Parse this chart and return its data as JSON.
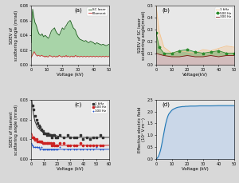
{
  "panel_a": {
    "title": "(a)",
    "xlabel": "Voltage (kV)",
    "ylabel": "SDEV of\nscattering angle (mrad)",
    "xlim": [
      0,
      50
    ],
    "ylim": [
      0,
      0.08
    ],
    "yticks": [
      0.0,
      0.02,
      0.04,
      0.06,
      0.08
    ],
    "xticks": [
      0,
      10,
      20,
      30,
      40,
      50
    ],
    "sc_laser_x": [
      0,
      0.5,
      1,
      1.5,
      2,
      2.5,
      3,
      3.5,
      4,
      4.5,
      5,
      5.5,
      6,
      6.5,
      7,
      7.5,
      8,
      8.5,
      9,
      9.5,
      10,
      10.5,
      11,
      11.5,
      12,
      12.5,
      13,
      13.5,
      14,
      14.5,
      15,
      15.5,
      16,
      16.5,
      17,
      17.5,
      18,
      18.5,
      19,
      19.5,
      20,
      20.5,
      21,
      21.5,
      22,
      22.5,
      23,
      23.5,
      24,
      24.5,
      25,
      25.5,
      26,
      26.5,
      27,
      27.5,
      28,
      28.5,
      29,
      29.5,
      30,
      31,
      32,
      33,
      34,
      35,
      36,
      37,
      38,
      39,
      40,
      41,
      42,
      43,
      44,
      45,
      46,
      47,
      48,
      49,
      50
    ],
    "sc_laser_y": [
      0.03,
      0.055,
      0.075,
      0.068,
      0.062,
      0.057,
      0.055,
      0.052,
      0.048,
      0.045,
      0.042,
      0.041,
      0.04,
      0.04,
      0.042,
      0.04,
      0.038,
      0.039,
      0.04,
      0.039,
      0.038,
      0.037,
      0.036,
      0.037,
      0.04,
      0.043,
      0.046,
      0.047,
      0.048,
      0.049,
      0.05,
      0.047,
      0.045,
      0.043,
      0.042,
      0.041,
      0.04,
      0.042,
      0.045,
      0.047,
      0.05,
      0.049,
      0.048,
      0.049,
      0.052,
      0.053,
      0.055,
      0.057,
      0.058,
      0.059,
      0.06,
      0.058,
      0.055,
      0.053,
      0.05,
      0.049,
      0.048,
      0.046,
      0.042,
      0.04,
      0.038,
      0.035,
      0.034,
      0.033,
      0.032,
      0.033,
      0.031,
      0.03,
      0.032,
      0.031,
      0.03,
      0.028,
      0.03,
      0.029,
      0.028,
      0.027,
      0.028,
      0.027,
      0.026,
      0.027,
      0.028
    ],
    "filament_x": [
      0,
      0.5,
      1,
      1.5,
      2,
      2.5,
      3,
      3.5,
      4,
      4.5,
      5,
      5.5,
      6,
      6.5,
      7,
      7.5,
      8,
      8.5,
      9,
      9.5,
      10,
      10.5,
      11,
      11.5,
      12,
      12.5,
      13,
      13.5,
      14,
      14.5,
      15,
      15.5,
      16,
      16.5,
      17,
      17.5,
      18,
      18.5,
      19,
      19.5,
      20,
      20.5,
      21,
      21.5,
      22,
      22.5,
      23,
      23.5,
      24,
      24.5,
      25,
      25.5,
      26,
      26.5,
      27,
      27.5,
      28,
      28.5,
      29,
      29.5,
      30,
      31,
      32,
      33,
      34,
      35,
      36,
      37,
      38,
      39,
      40,
      41,
      42,
      43,
      44,
      45,
      46,
      47,
      48,
      49,
      50
    ],
    "filament_y": [
      0.01,
      0.012,
      0.014,
      0.016,
      0.018,
      0.016,
      0.014,
      0.013,
      0.012,
      0.013,
      0.013,
      0.012,
      0.012,
      0.013,
      0.013,
      0.012,
      0.012,
      0.011,
      0.012,
      0.011,
      0.012,
      0.011,
      0.011,
      0.012,
      0.013,
      0.012,
      0.012,
      0.011,
      0.011,
      0.012,
      0.012,
      0.011,
      0.011,
      0.012,
      0.011,
      0.012,
      0.013,
      0.012,
      0.012,
      0.011,
      0.011,
      0.012,
      0.012,
      0.011,
      0.012,
      0.013,
      0.011,
      0.012,
      0.012,
      0.011,
      0.011,
      0.012,
      0.012,
      0.011,
      0.012,
      0.011,
      0.012,
      0.013,
      0.012,
      0.011,
      0.012,
      0.011,
      0.012,
      0.011,
      0.012,
      0.011,
      0.012,
      0.011,
      0.012,
      0.011,
      0.012,
      0.011,
      0.012,
      0.011,
      0.012,
      0.011,
      0.012,
      0.011,
      0.012,
      0.011,
      0.012
    ],
    "sc_color": "#1a5c1a",
    "filament_color": "#cc3333",
    "fill_color": "#7ec87e",
    "fill_alpha": 0.6,
    "bg_color": "#e8e8e8"
  },
  "panel_b": {
    "title": "(b)",
    "xlabel": "Voltage(kV)",
    "ylabel": "SDEV of SC laser\nscattering angle(mrad)",
    "xlim": [
      0,
      50
    ],
    "ylim": [
      0,
      0.5
    ],
    "yticks": [
      0.0,
      0.1,
      0.2,
      0.3,
      0.4,
      0.5
    ],
    "xticks": [
      0,
      10,
      20,
      30,
      40,
      50
    ],
    "v1khz_x": [
      0,
      2,
      5,
      10,
      15,
      20,
      25,
      30,
      35,
      40,
      45,
      50
    ],
    "v1khz_y": [
      0.5,
      0.28,
      0.15,
      0.1,
      0.12,
      0.11,
      0.1,
      0.13,
      0.12,
      0.14,
      0.16,
      0.15
    ],
    "v500hz_x": [
      0,
      2,
      5,
      10,
      15,
      20,
      25,
      30,
      35,
      40,
      45,
      50
    ],
    "v500hz_y": [
      0.27,
      0.15,
      0.1,
      0.1,
      0.12,
      0.13,
      0.11,
      0.1,
      0.11,
      0.12,
      0.1,
      0.1
    ],
    "v300hz_x": [
      0,
      2,
      5,
      10,
      15,
      20,
      25,
      30,
      35,
      40,
      45,
      50
    ],
    "v300hz_y": [
      0.1,
      0.09,
      0.08,
      0.07,
      0.07,
      0.08,
      0.07,
      0.07,
      0.08,
      0.07,
      0.08,
      0.08
    ],
    "color_1khz": "#f5c28a",
    "color_500hz": "#2d8b2d",
    "color_300hz": "#7b1010",
    "fill_alpha": 0.35,
    "bg_color": "#e8e8e8"
  },
  "panel_c": {
    "title": "(c)",
    "xlabel": "Voltage (kV)",
    "ylabel": "SDEV of filament\nscattering angle (mrad)",
    "xlim": [
      0,
      60
    ],
    "ylim": [
      0.0,
      0.03
    ],
    "yticks": [
      0.0,
      0.01,
      0.02,
      0.03
    ],
    "xticks": [
      0,
      10,
      20,
      30,
      40,
      50,
      60
    ],
    "v1khz_x": [
      1,
      2,
      3,
      4,
      5,
      6,
      7,
      8,
      9,
      10,
      11,
      12,
      13,
      14,
      15,
      16,
      17,
      18,
      19,
      20,
      22,
      25,
      28,
      30,
      33,
      35,
      38,
      40,
      43,
      45,
      48,
      50,
      53,
      55
    ],
    "v1khz_y": [
      0.027,
      0.025,
      0.022,
      0.02,
      0.018,
      0.017,
      0.016,
      0.015,
      0.014,
      0.013,
      0.013,
      0.012,
      0.013,
      0.012,
      0.012,
      0.011,
      0.012,
      0.012,
      0.011,
      0.011,
      0.012,
      0.011,
      0.012,
      0.011,
      0.011,
      0.011,
      0.012,
      0.01,
      0.011,
      0.01,
      0.011,
      0.011,
      0.012,
      0.011
    ],
    "v500hz_x": [
      1,
      2,
      3,
      4,
      5,
      6,
      7,
      8,
      9,
      10,
      11,
      12,
      13,
      14,
      15,
      16,
      17,
      18,
      19,
      20,
      22,
      25,
      28,
      30,
      33,
      35,
      38,
      40,
      43,
      45,
      48,
      50,
      53,
      55
    ],
    "v500hz_y": [
      0.011,
      0.011,
      0.01,
      0.01,
      0.009,
      0.009,
      0.009,
      0.009,
      0.008,
      0.008,
      0.008,
      0.008,
      0.008,
      0.008,
      0.008,
      0.007,
      0.008,
      0.007,
      0.007,
      0.007,
      0.008,
      0.008,
      0.007,
      0.007,
      0.007,
      0.007,
      0.008,
      0.007,
      0.007,
      0.007,
      0.007,
      0.007,
      0.007,
      0.007
    ],
    "v100hz_x": [
      1,
      2,
      3,
      4,
      5,
      6,
      7,
      8,
      9,
      10,
      11,
      12,
      13,
      14,
      15,
      16,
      17,
      18,
      19,
      20,
      22,
      25,
      28,
      30,
      33,
      35,
      38,
      40,
      43,
      45,
      48,
      50,
      53,
      55
    ],
    "v100hz_y": [
      0.007,
      0.006,
      0.006,
      0.006,
      0.006,
      0.006,
      0.005,
      0.006,
      0.005,
      0.005,
      0.005,
      0.005,
      0.005,
      0.005,
      0.005,
      0.005,
      0.005,
      0.005,
      0.005,
      0.005,
      0.006,
      0.005,
      0.005,
      0.005,
      0.005,
      0.005,
      0.005,
      0.005,
      0.005,
      0.005,
      0.005,
      0.006,
      0.005,
      0.005
    ],
    "fit1_x": [
      0.5,
      1,
      2,
      3,
      5,
      8,
      12,
      18,
      25,
      35,
      50,
      60
    ],
    "fit1_y": [
      0.03,
      0.027,
      0.022,
      0.019,
      0.016,
      0.014,
      0.013,
      0.012,
      0.011,
      0.011,
      0.011,
      0.011
    ],
    "fit5_x": [
      0.5,
      1,
      2,
      3,
      5,
      8,
      12,
      18,
      25,
      35,
      50,
      60
    ],
    "fit5_y": [
      0.013,
      0.012,
      0.01,
      0.009,
      0.009,
      0.008,
      0.008,
      0.007,
      0.007,
      0.007,
      0.007,
      0.007
    ],
    "fit100_x": [
      0.5,
      1,
      2,
      3,
      5,
      8,
      12,
      18,
      25,
      35,
      50,
      60
    ],
    "fit100_y": [
      0.008,
      0.007,
      0.006,
      0.006,
      0.006,
      0.005,
      0.005,
      0.005,
      0.005,
      0.005,
      0.005,
      0.005
    ],
    "color_1khz": "#333333",
    "color_500hz": "#cc2222",
    "color_100hz": "#2255cc",
    "bg_color": "#e8e8e8"
  },
  "panel_d": {
    "title": "(d)",
    "xlabel": "Voltage (kV)",
    "ylabel": "Effective electric field\n(10⁶ V·m⁻¹)",
    "xlim": [
      0,
      50
    ],
    "ylim": [
      0,
      2.5
    ],
    "yticks": [
      0.0,
      0.5,
      1.0,
      1.5,
      2.0,
      2.5
    ],
    "xticks": [
      0,
      10,
      20,
      30,
      40,
      50
    ],
    "x": [
      0,
      0.5,
      1,
      1.5,
      2,
      2.5,
      3,
      3.5,
      4,
      4.5,
      5,
      5.5,
      6,
      6.5,
      7,
      7.5,
      8,
      8.5,
      9,
      9.5,
      10,
      11,
      12,
      13,
      14,
      15,
      16,
      17,
      18,
      19,
      20,
      22,
      25,
      28,
      30,
      35,
      40,
      45,
      50
    ],
    "y": [
      0,
      0.03,
      0.07,
      0.12,
      0.2,
      0.3,
      0.42,
      0.58,
      0.75,
      0.93,
      1.1,
      1.28,
      1.45,
      1.58,
      1.7,
      1.8,
      1.88,
      1.93,
      1.97,
      2.01,
      2.05,
      2.1,
      2.13,
      2.16,
      2.18,
      2.19,
      2.2,
      2.21,
      2.21,
      2.22,
      2.22,
      2.23,
      2.23,
      2.24,
      2.24,
      2.24,
      2.25,
      2.25,
      2.25
    ],
    "line_color": "#1f77b4",
    "fill_color": "#aec7e8",
    "fill_alpha": 0.5,
    "bg_color": "#e8e8e8"
  },
  "fig_bg": "#d8d8d8"
}
